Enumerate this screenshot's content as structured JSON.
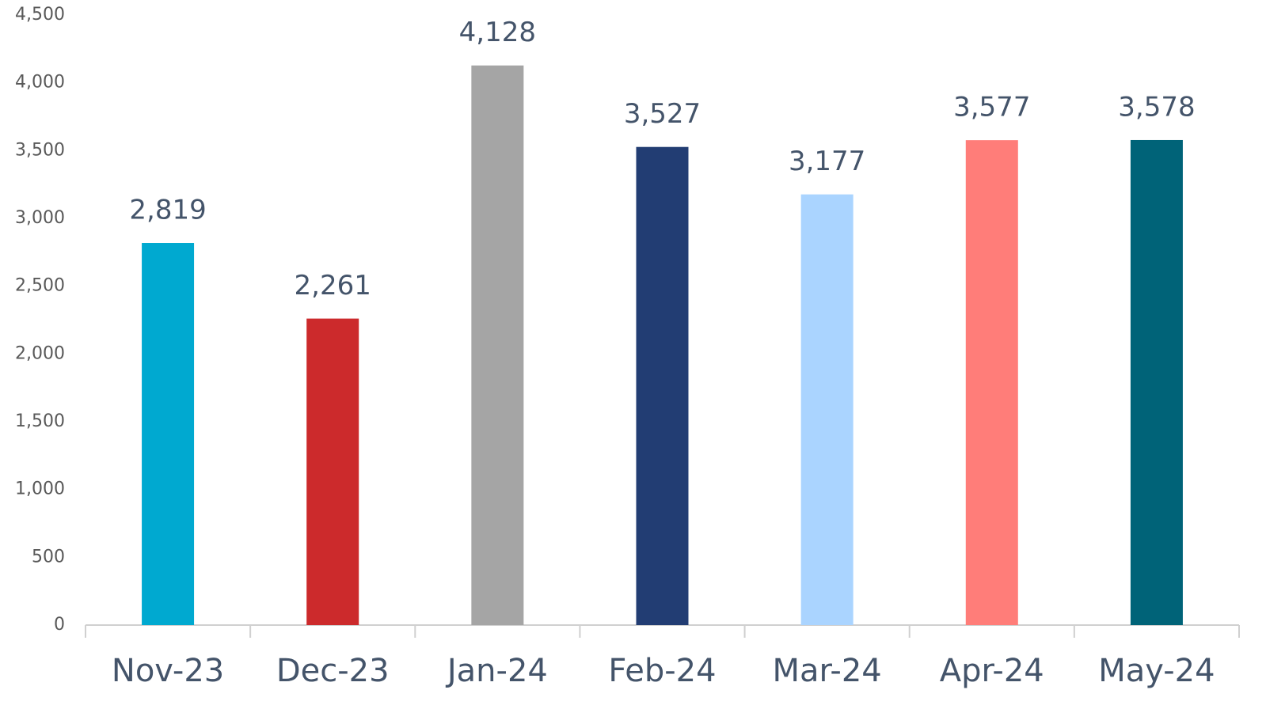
{
  "chart_data": {
    "type": "bar",
    "categories": [
      "Nov-23",
      "Dec-23",
      "Jan-24",
      "Feb-24",
      "Mar-24",
      "Apr-24",
      "May-24"
    ],
    "values": [
      2819,
      2261,
      4128,
      3527,
      3177,
      3577,
      3578
    ],
    "value_labels": [
      "2,819",
      "2,261",
      "4,128",
      "3,527",
      "3,177",
      "3,577",
      "3,578"
    ],
    "colors": [
      "#00a9d0",
      "#cc2a2c",
      "#a5a5a5",
      "#223d73",
      "#aad4ff",
      "#ff7d79",
      "#006378"
    ],
    "ylim": [
      0,
      4500
    ],
    "yticks": [
      0,
      500,
      {
        "value": 1000,
        "label": "1,000"
      },
      {
        "value": 1500,
        "label": "1,500"
      },
      {
        "value": 2000,
        "label": "2,000"
      },
      {
        "value": 2500,
        "label": "2,500"
      },
      {
        "value": 3000,
        "label": "3,000"
      },
      {
        "value": 3500,
        "label": "3,500"
      },
      {
        "value": 4000,
        "label": "4,000"
      },
      {
        "value": 4500,
        "label": "4,500"
      }
    ],
    "grid": false
  }
}
